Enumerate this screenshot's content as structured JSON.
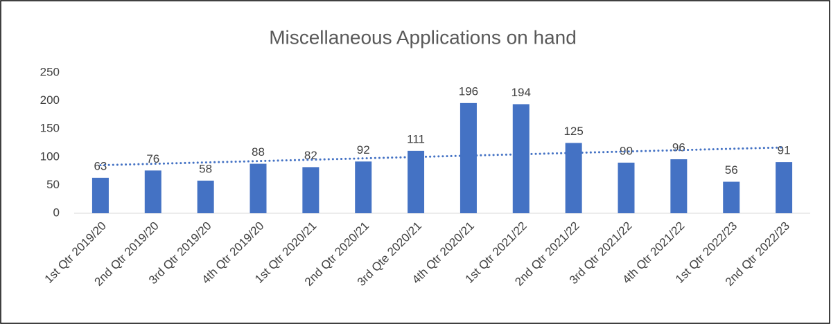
{
  "chart_data": {
    "type": "bar",
    "title": "Miscellaneous Applications on hand",
    "categories": [
      "1st Qtr 2019/20",
      "2nd Qtr 2019/20",
      "3rd Qtr 2019/20",
      "4th Qtr 2019/20",
      "1st Qtr 2020/21",
      "2nd Qtr 2020/21",
      "3rd Qte 2020/21",
      "4th Qtr 2020/21",
      "1st Qtr 2021/22",
      "2nd Qtr 2021/22",
      "3rd Qtr 2021/22",
      "4th Qtr 2021/22",
      "1st Qtr 2022/23",
      "2nd Qtr 2022/23"
    ],
    "values": [
      63,
      76,
      58,
      88,
      82,
      92,
      111,
      196,
      194,
      125,
      90,
      96,
      56,
      91
    ],
    "color": "#4472c4",
    "trendline": true,
    "trendline_color": "#4472c4",
    "ylim": [
      0,
      250
    ],
    "yticks": [
      0,
      50,
      100,
      150,
      200,
      250
    ],
    "grid": false
  }
}
